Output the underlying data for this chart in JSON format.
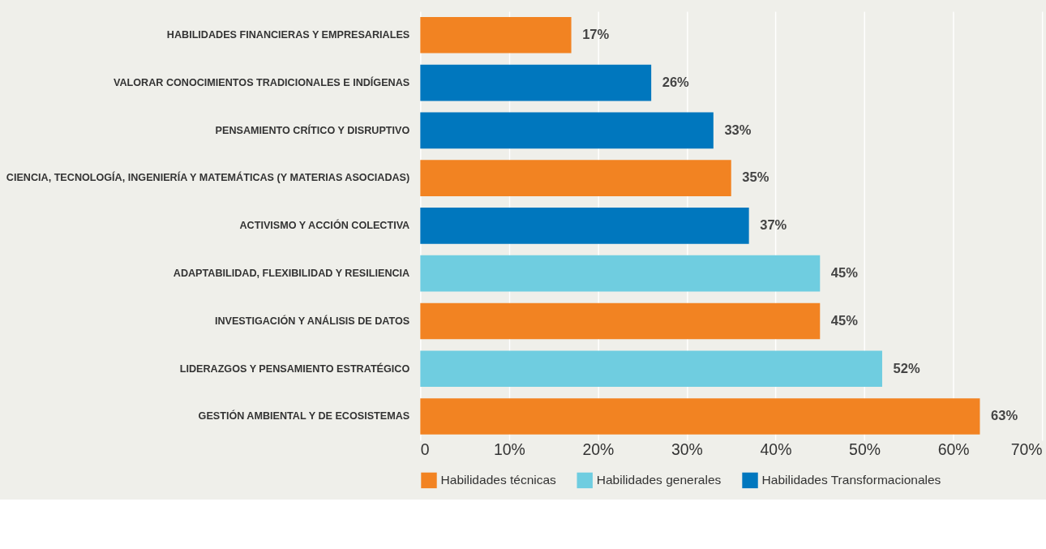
{
  "chart_data": {
    "type": "bar",
    "orientation": "horizontal",
    "categories": [
      "HABILIDADES FINANCIERAS Y EMPRESARIALES",
      "VALORAR CONOCIMIENTOS TRADICIONALES E INDÍGENAS",
      "PENSAMIENTO CRÍTICO Y DISRUPTIVO",
      "CIENCIA, TECNOLOGÍA, INGENIERÍA Y MATEMÁTICAS (Y MATERIAS ASOCIADAS)",
      "ACTIVISMO Y ACCIÓN COLECTIVA",
      "ADAPTABILIDAD, FLEXIBILIDAD Y RESILIENCIA",
      "INVESTIGACIÓN Y ANÁLISIS DE DATOS",
      "LIDERAZGOS Y PENSAMIENTO ESTRATÉGICO",
      "GESTIÓN AMBIENTAL Y DE ECOSISTEMAS"
    ],
    "series": [
      {
        "name": "Habilidades técnicas",
        "color": "#f28322",
        "values": [
          17,
          null,
          null,
          35,
          null,
          null,
          45,
          null,
          63
        ],
        "value_labels": [
          "17%",
          null,
          null,
          "35%",
          null,
          null,
          "45%",
          null,
          "63%"
        ]
      },
      {
        "name": "Habilidades generales",
        "color": "#6fcde0",
        "values": [
          null,
          null,
          null,
          null,
          null,
          45,
          null,
          52,
          null
        ],
        "value_labels": [
          null,
          null,
          null,
          null,
          null,
          "45%",
          null,
          "52%",
          null
        ]
      },
      {
        "name": "Habilidades Transformacionales",
        "color": "#0077be",
        "values": [
          null,
          26,
          33,
          null,
          37,
          null,
          null,
          null,
          null
        ],
        "value_labels": [
          null,
          "26%",
          "33%",
          null,
          "37%",
          null,
          null,
          null,
          null
        ]
      }
    ],
    "xlim": [
      0,
      70
    ],
    "xticks": [
      0,
      {
        "value": 10,
        "label": "10%"
      },
      {
        "value": 20,
        "label": "20%"
      },
      {
        "value": 30,
        "label": "30%"
      },
      {
        "value": 40,
        "label": "40%"
      },
      {
        "value": 50,
        "label": "50%"
      },
      {
        "value": 60,
        "label": "60%"
      },
      {
        "value": 70,
        "label": "70%"
      }
    ],
    "grid": "x",
    "legend": "bottom"
  }
}
